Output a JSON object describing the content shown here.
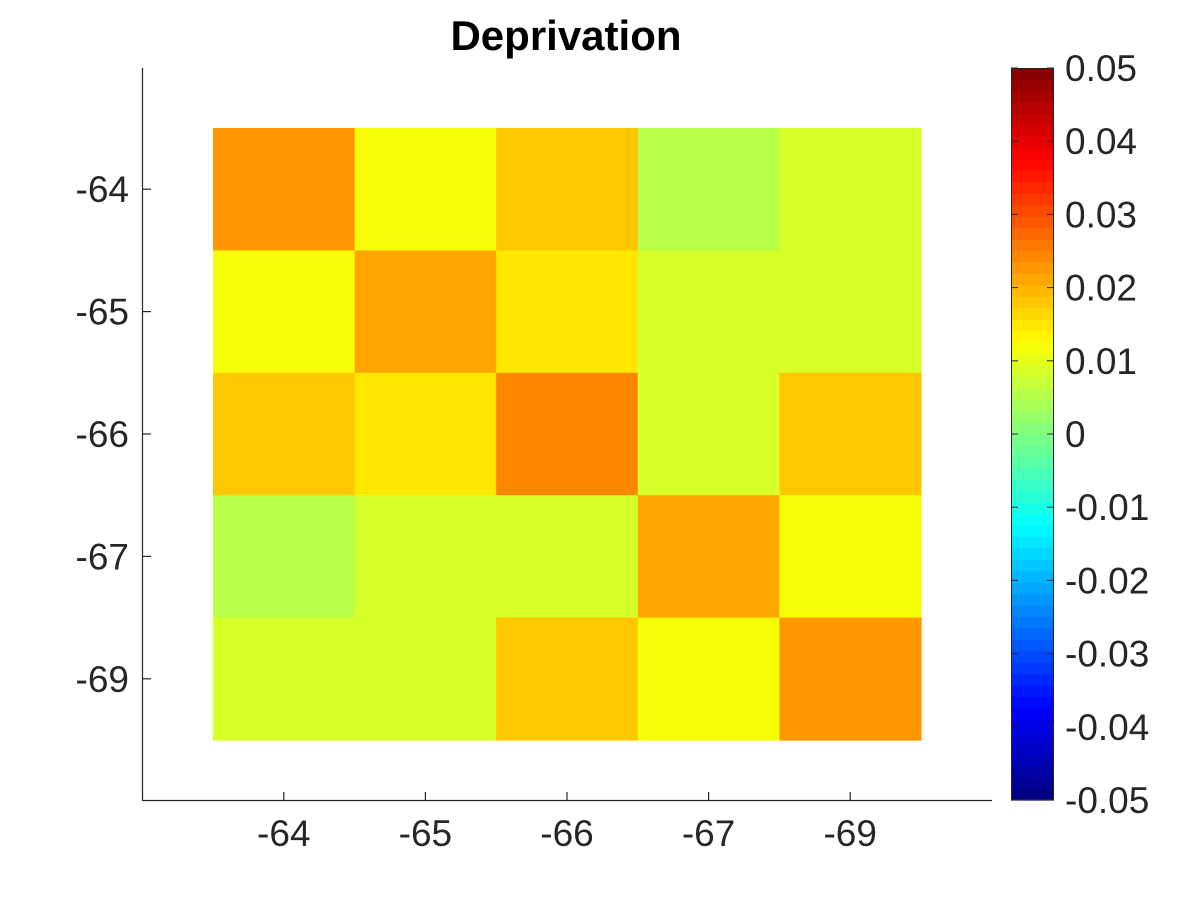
{
  "chart_data": {
    "type": "heatmap",
    "title": "Deprivation",
    "xlabel": "",
    "ylabel": "",
    "x_tick_labels": [
      "-64",
      "-65",
      "-66",
      "-67",
      "-69"
    ],
    "y_tick_labels": [
      "-64",
      "-65",
      "-66",
      "-67",
      "-69"
    ],
    "values": [
      [
        0.0226,
        0.0116,
        0.0176,
        0.006,
        0.008
      ],
      [
        0.0116,
        0.0216,
        0.0144,
        0.008,
        0.008
      ],
      [
        0.0176,
        0.0144,
        0.0235,
        0.0083,
        0.0176
      ],
      [
        0.006,
        0.008,
        0.0083,
        0.0216,
        0.0116
      ],
      [
        0.008,
        0.008,
        0.0176,
        0.0116,
        0.0226
      ]
    ],
    "colorbar": {
      "colormap": "jet",
      "min": -0.05,
      "max": 0.05,
      "tick_labels": [
        "0.05",
        "0.04",
        "0.03",
        "0.02",
        "0.01",
        "0",
        "-0.01",
        "-0.02",
        "-0.03",
        "-0.04",
        "-0.05"
      ],
      "tick_values": [
        0.05,
        0.04,
        0.03,
        0.02,
        0.01,
        0,
        -0.01,
        -0.02,
        -0.03,
        -0.04,
        -0.05
      ]
    },
    "grid": false,
    "legend": "none"
  }
}
